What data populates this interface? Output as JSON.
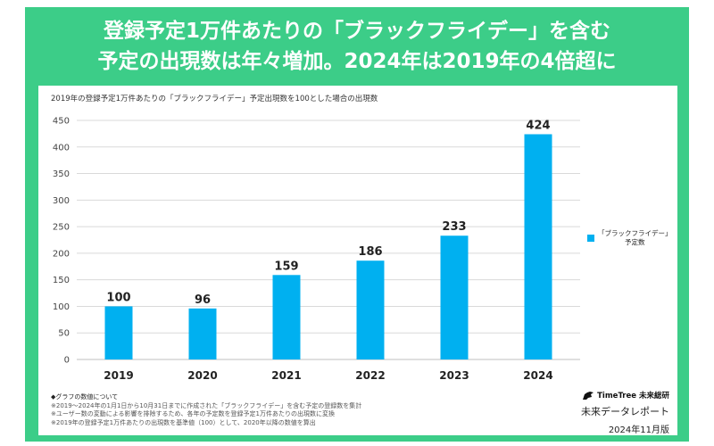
{
  "headline": {
    "line1": "登録予定1万件あたりの「ブラックフライデー」を含む",
    "line2": "予定の出現数は年々増加。2024年は2019年の4倍超に"
  },
  "colors": {
    "frame": "#3ccd88",
    "bar": "#00b0f0",
    "grid": "#d9d9d9"
  },
  "chart_data": {
    "type": "bar",
    "title": "2019年の登録予定1万件あたりの「ブラックフライデー」予定出現数を100とした場合の出現数",
    "categories": [
      "2019",
      "2020",
      "2021",
      "2022",
      "2023",
      "2024"
    ],
    "series": [
      {
        "name": "「ブラックフライデー」予定数",
        "values": [
          100,
          96,
          159,
          186,
          233,
          424
        ]
      }
    ],
    "ylim": [
      0,
      450
    ],
    "yticks": [
      0,
      50,
      100,
      150,
      200,
      250,
      300,
      350,
      400,
      450
    ],
    "grid": true,
    "legend": "right",
    "data_labels": true
  },
  "legend": {
    "line1": "「ブラックフライデー」",
    "line2": "予定数"
  },
  "notes": {
    "heading": "◆グラフの数値について",
    "items": [
      "※2019～2024年の1月1日から10月31日までに作成された「ブラックフライデー」を含む予定の登録数を集計",
      "※ユーザー数の変動による影響を排除するため、各年の予定数を登録予定1万件あたりの出現数に変換",
      "※2019年の登録予定1万件あたりの出現数を基準値（100）として、2020年以降の数値を算出"
    ]
  },
  "brand": {
    "logo_text": "TimeTree 未来総研",
    "logo_icon": "bird-icon",
    "report": "未来データレポート",
    "date": "2024年11月版"
  }
}
